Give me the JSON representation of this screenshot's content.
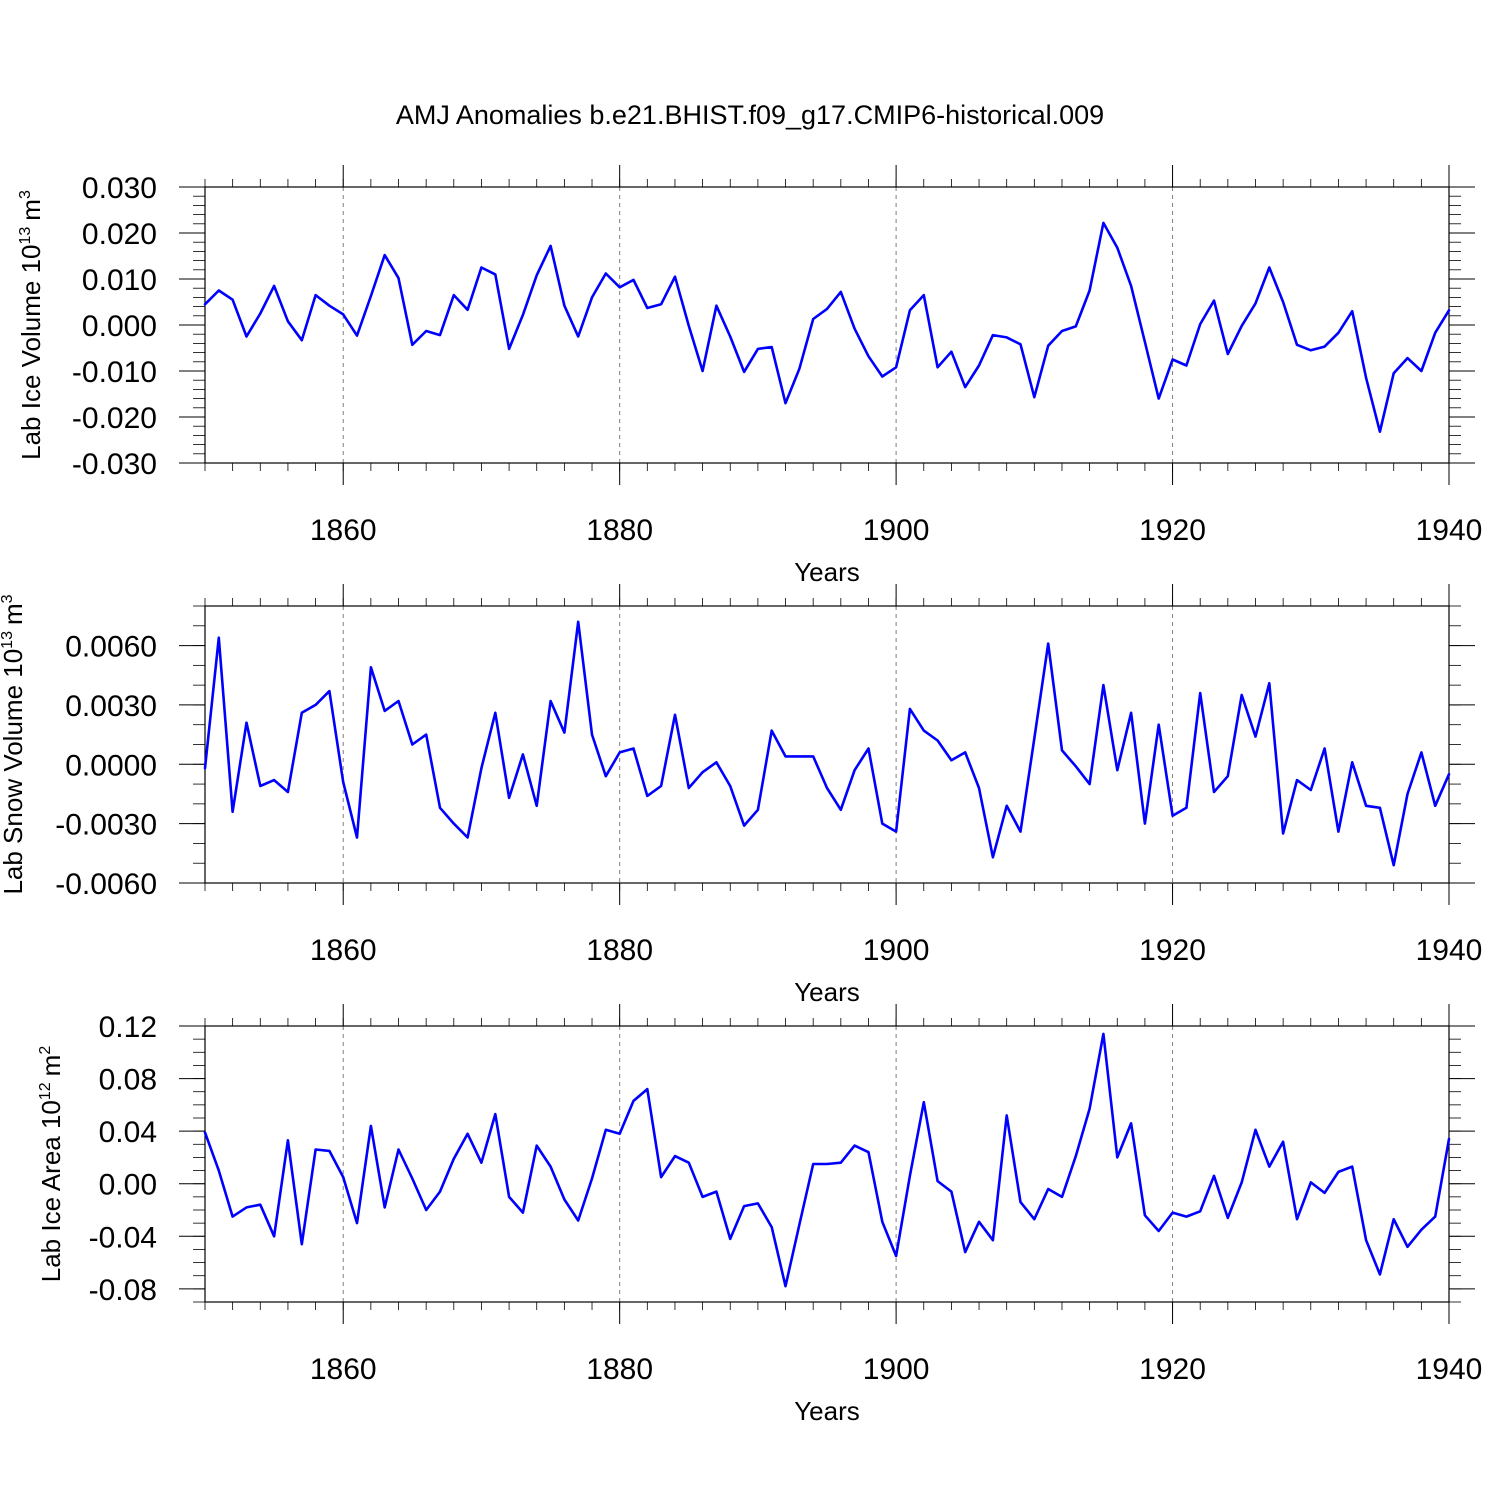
{
  "title": "AMJ Anomalies b.e21.BHIST.f09_g17.CMIP6-historical.009",
  "colors": {
    "line": "#0000ff",
    "axis": "#000000",
    "grid": "#7f7f7f",
    "background": "#ffffff"
  },
  "chart_data": [
    {
      "type": "line",
      "ylabel_main": "Lab Ice Volume 10",
      "ylabel_sup": "13",
      "ylabel_unit": "m",
      "ylabel_unit_sup": "3",
      "xlabel": "Years",
      "xlim": [
        1850,
        1940
      ],
      "ylim": [
        -0.03,
        0.03
      ],
      "yticks": [
        -0.03,
        -0.02,
        -0.01,
        0.0,
        0.01,
        0.02,
        0.03
      ],
      "ytick_labels": [
        "-0.030",
        "-0.020",
        "-0.010",
        "0.000",
        "0.010",
        "0.020",
        "0.030"
      ],
      "yminor_step": 0.002,
      "xticks": [
        1860,
        1880,
        1900,
        1920,
        1940
      ],
      "xtick_labels": [
        "1860",
        "1880",
        "1900",
        "1920",
        "1940"
      ],
      "grid_x": [
        1860,
        1880,
        1900,
        1920
      ],
      "x_start": 1850,
      "values": [
        0.0045,
        0.0075,
        0.0055,
        -0.0025,
        0.0025,
        0.0085,
        0.0008,
        -0.0033,
        0.0065,
        0.0042,
        0.0023,
        -0.0023,
        0.0063,
        0.0152,
        0.0102,
        -0.0043,
        -0.0013,
        -0.0022,
        0.0065,
        0.0033,
        0.0125,
        0.011,
        -0.0052,
        0.0022,
        0.0108,
        0.0172,
        0.0042,
        -0.0025,
        0.006,
        0.0112,
        0.0082,
        0.0098,
        0.0037,
        0.0045,
        0.0105,
        -0.0002,
        -0.01,
        0.0042,
        -0.0025,
        -0.0102,
        -0.0052,
        -0.0048,
        -0.017,
        -0.0095,
        0.0013,
        0.0035,
        0.0072,
        -0.0008,
        -0.0068,
        -0.0112,
        -0.0092,
        0.0032,
        0.0065,
        -0.0092,
        -0.0058,
        -0.0135,
        -0.0088,
        -0.0022,
        -0.0027,
        -0.0042,
        -0.0157,
        -0.0045,
        -0.0013,
        -0.0003,
        0.0075,
        0.0222,
        0.0168,
        0.0085,
        -0.0037,
        -0.016,
        -0.0075,
        -0.0088,
        0.0002,
        0.0053,
        -0.0063,
        -0.0002,
        0.0047,
        0.0125,
        0.005,
        -0.0043,
        -0.0055,
        -0.0047,
        -0.0017,
        0.003,
        -0.0115,
        -0.0232,
        -0.0105,
        -0.0072,
        -0.01,
        -0.0017,
        0.0032
      ]
    },
    {
      "type": "line",
      "ylabel_main": "Lab Snow Volume 10",
      "ylabel_sup": "13",
      "ylabel_unit": "m",
      "ylabel_unit_sup": "3",
      "xlabel": "Years",
      "xlim": [
        1850,
        1940
      ],
      "ylim": [
        -0.006,
        0.008
      ],
      "yticks": [
        -0.006,
        -0.003,
        0.0,
        0.003,
        0.006
      ],
      "ytick_labels": [
        "-0.0060",
        "-0.0030",
        "0.0000",
        "0.0030",
        "0.0060"
      ],
      "yminor_step": 0.001,
      "xticks": [
        1860,
        1880,
        1900,
        1920,
        1940
      ],
      "xtick_labels": [
        "1860",
        "1880",
        "1900",
        "1920",
        "1940"
      ],
      "grid_x": [
        1860,
        1880,
        1900,
        1920
      ],
      "x_start": 1850,
      "values": [
        -0.0002,
        0.0064,
        -0.0024,
        0.0021,
        -0.0011,
        -0.0008,
        -0.0014,
        0.0026,
        0.003,
        0.0037,
        -0.0009,
        -0.0037,
        0.0049,
        0.0027,
        0.0032,
        0.001,
        0.0015,
        -0.0022,
        -0.003,
        -0.0037,
        -0.0002,
        0.0026,
        -0.0017,
        0.0005,
        -0.0021,
        0.0032,
        0.0016,
        0.0072,
        0.0015,
        -0.0006,
        0.0006,
        0.0008,
        -0.0016,
        -0.0011,
        0.0025,
        -0.0012,
        -0.0004,
        0.0001,
        -0.0011,
        -0.0031,
        -0.0023,
        0.0017,
        0.0004,
        0.0004,
        0.0004,
        -0.0012,
        -0.0023,
        -0.0003,
        0.0008,
        -0.003,
        -0.0034,
        0.0028,
        0.0017,
        0.0012,
        0.0002,
        0.0006,
        -0.0012,
        -0.0047,
        -0.0021,
        -0.0034,
        0.0013,
        0.0061,
        0.0007,
        -0.0001,
        -0.001,
        0.004,
        -0.0003,
        0.0026,
        -0.003,
        0.002,
        -0.0026,
        -0.0022,
        0.0036,
        -0.0014,
        -0.0006,
        0.0035,
        0.0014,
        0.0041,
        -0.0035,
        -0.0008,
        -0.0013,
        0.0008,
        -0.0034,
        0.0001,
        -0.0021,
        -0.0022,
        -0.0051,
        -0.0015,
        0.0006,
        -0.0021,
        -0.0005
      ]
    },
    {
      "type": "line",
      "ylabel_main": "Lab Ice Area 10",
      "ylabel_sup": "12",
      "ylabel_unit": "m",
      "ylabel_unit_sup": "2",
      "xlabel": "Years",
      "xlim": [
        1850,
        1940
      ],
      "ylim": [
        -0.09,
        0.12
      ],
      "yticks": [
        -0.08,
        -0.04,
        0.0,
        0.04,
        0.08,
        0.12
      ],
      "ytick_labels": [
        "-0.08",
        "-0.04",
        "0.00",
        "0.04",
        "0.08",
        "0.12"
      ],
      "yminor_step": 0.01,
      "xticks": [
        1860,
        1880,
        1900,
        1920,
        1940
      ],
      "xtick_labels": [
        "1860",
        "1880",
        "1900",
        "1920",
        "1940"
      ],
      "grid_x": [
        1860,
        1880,
        1900,
        1920
      ],
      "x_start": 1850,
      "values": [
        0.039,
        0.01,
        -0.025,
        -0.018,
        -0.016,
        -0.04,
        0.033,
        -0.046,
        0.026,
        0.025,
        0.005,
        -0.03,
        0.044,
        -0.018,
        0.026,
        0.004,
        -0.02,
        -0.006,
        0.019,
        0.038,
        0.016,
        0.053,
        -0.01,
        -0.022,
        0.029,
        0.013,
        -0.012,
        -0.028,
        0.004,
        0.041,
        0.038,
        0.063,
        0.072,
        0.005,
        0.021,
        0.016,
        -0.01,
        -0.006,
        -0.042,
        -0.017,
        -0.015,
        -0.033,
        -0.078,
        -0.031,
        0.015,
        0.015,
        0.016,
        0.029,
        0.024,
        -0.029,
        -0.055,
        0.006,
        0.062,
        0.002,
        -0.006,
        -0.052,
        -0.029,
        -0.043,
        0.052,
        -0.014,
        -0.027,
        -0.004,
        -0.01,
        0.021,
        0.057,
        0.114,
        0.02,
        0.046,
        -0.024,
        -0.036,
        -0.022,
        -0.025,
        -0.021,
        0.006,
        -0.026,
        0.001,
        0.041,
        0.013,
        0.032,
        -0.027,
        0.001,
        -0.007,
        0.009,
        0.013,
        -0.043,
        -0.069,
        -0.027,
        -0.048,
        -0.035,
        -0.025,
        0.034
      ]
    }
  ]
}
